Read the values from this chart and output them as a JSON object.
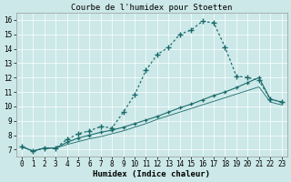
{
  "title": "Courbe de l'humidex pour Stoetten",
  "xlabel": "Humidex (Indice chaleur)",
  "xlim": [
    -0.5,
    23.5
  ],
  "ylim": [
    6.5,
    16.5
  ],
  "xticks": [
    0,
    1,
    2,
    3,
    4,
    5,
    6,
    7,
    8,
    9,
    10,
    11,
    12,
    13,
    14,
    15,
    16,
    17,
    18,
    19,
    20,
    21,
    22,
    23
  ],
  "yticks": [
    7,
    8,
    9,
    10,
    11,
    12,
    13,
    14,
    15,
    16
  ],
  "bg_color": "#cce8e8",
  "line_color": "#1a6b6b",
  "grid_color": "#ffffff",
  "curve1_x": [
    0,
    1,
    2,
    3,
    4,
    5,
    6,
    7,
    8,
    9,
    10,
    11,
    12,
    13,
    14,
    15,
    16,
    17,
    18,
    19,
    20,
    21,
    22,
    23
  ],
  "curve1_y": [
    7.2,
    6.9,
    7.1,
    7.1,
    7.7,
    8.1,
    8.3,
    8.6,
    8.5,
    9.6,
    10.8,
    12.5,
    13.6,
    14.1,
    15.0,
    15.3,
    15.9,
    15.8,
    14.1,
    12.1,
    12.0,
    11.8,
    10.5,
    10.3
  ],
  "curve2_x": [
    0,
    1,
    2,
    3,
    4,
    5,
    6,
    7,
    8,
    9,
    10,
    11,
    12,
    13,
    14,
    15,
    16,
    17,
    18,
    19,
    20,
    21,
    22,
    23
  ],
  "curve2_y": [
    7.2,
    6.9,
    7.1,
    7.1,
    7.5,
    7.8,
    8.0,
    8.2,
    8.35,
    8.55,
    8.8,
    9.05,
    9.3,
    9.6,
    9.9,
    10.15,
    10.45,
    10.75,
    11.0,
    11.3,
    11.65,
    12.0,
    10.5,
    10.3
  ],
  "curve3_x": [
    0,
    1,
    2,
    3,
    4,
    5,
    6,
    7,
    8,
    9,
    10,
    11,
    12,
    13,
    14,
    15,
    16,
    17,
    18,
    19,
    20,
    21,
    22,
    23
  ],
  "curve3_y": [
    7.2,
    6.9,
    7.1,
    7.1,
    7.35,
    7.55,
    7.75,
    7.9,
    8.1,
    8.3,
    8.55,
    8.8,
    9.1,
    9.35,
    9.6,
    9.85,
    10.1,
    10.35,
    10.6,
    10.85,
    11.1,
    11.35,
    10.3,
    10.1
  ],
  "title_fontsize": 6.5,
  "tick_fontsize": 5.5,
  "xlabel_fontsize": 6.5
}
